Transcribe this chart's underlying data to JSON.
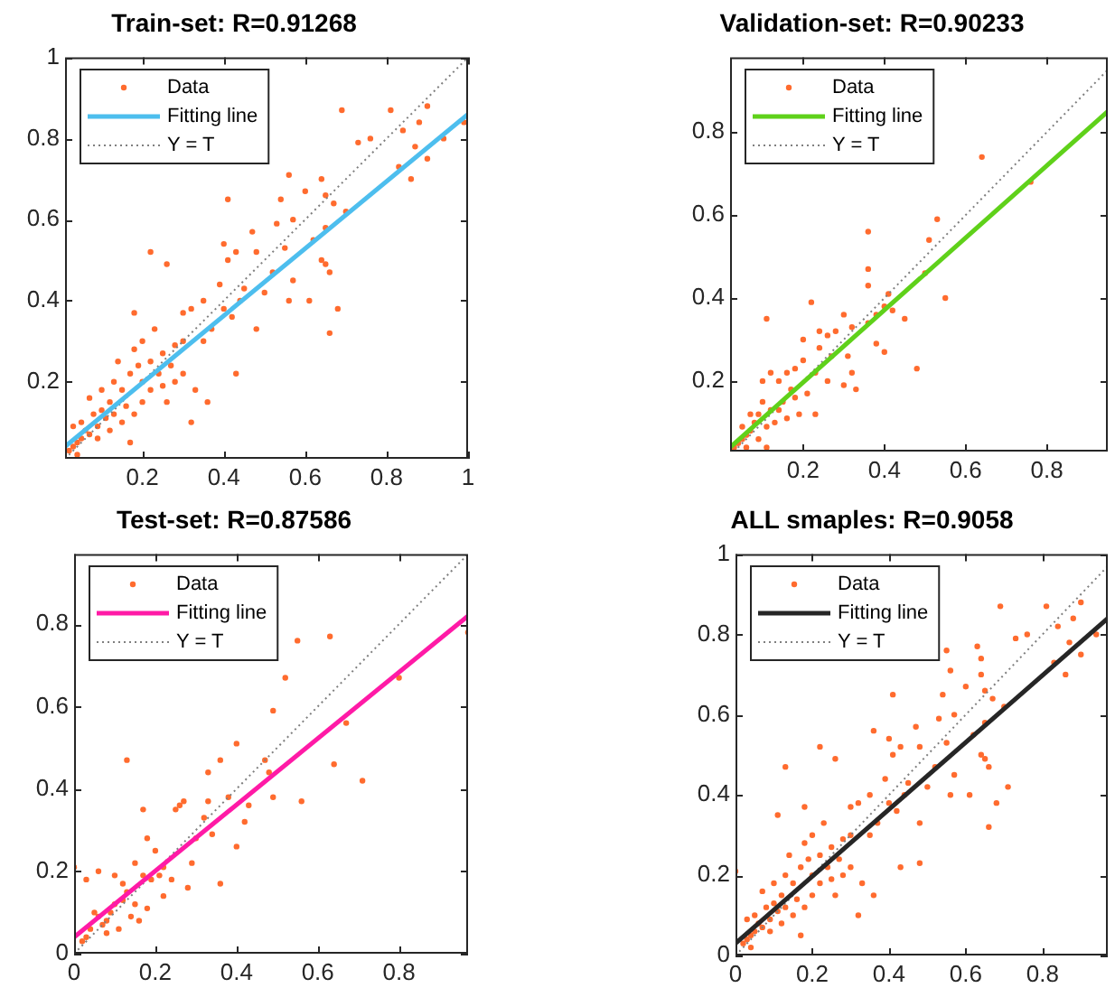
{
  "chart_data": [
    {
      "type": "scatter",
      "title": "Train-set: R=0.91268",
      "xlim": [
        0.01,
        1
      ],
      "ylim": [
        0.01,
        1
      ],
      "xticks": [
        0.2,
        0.4,
        0.6,
        0.8,
        1
      ],
      "yticks": [
        0.2,
        0.4,
        0.6,
        0.8,
        1
      ],
      "grid": false,
      "legend": "top left",
      "series": [
        {
          "name": "Data",
          "type": "scatter",
          "marker": "circle",
          "color": "#ff6b2e",
          "x": [
            0.69,
            0.81,
            0.9,
            0.88,
            0.84,
            0.99,
            0.94,
            0.87,
            0.76,
            0.73,
            0.83,
            0.9,
            0.86,
            0.56,
            0.64,
            0.6,
            0.41,
            0.54,
            0.65,
            0.67,
            0.53,
            0.57,
            0.65,
            0.7,
            0.47,
            0.4,
            0.43,
            0.22,
            0.26,
            0.41,
            0.48,
            0.55,
            0.64,
            0.65,
            0.66,
            0.62,
            0.57,
            0.52,
            0.56,
            0.61,
            0.68,
            0.66,
            0.5,
            0.44,
            0.45,
            0.39,
            0.48,
            0.43,
            0.35,
            0.32,
            0.3,
            0.4,
            0.42,
            0.37,
            0.35,
            0.3,
            0.28,
            0.25,
            0.22,
            0.18,
            0.23,
            0.2,
            0.18,
            0.24,
            0.28,
            0.33,
            0.36,
            0.32,
            0.26,
            0.2,
            0.17,
            0.15,
            0.13,
            0.12,
            0.1,
            0.08,
            0.06,
            0.05,
            0.04,
            0.03,
            0.02,
            0.05,
            0.07,
            0.03,
            0.09,
            0.12,
            0.15,
            0.18,
            0.2,
            0.22,
            0.14,
            0.16,
            0.11,
            0.13,
            0.09,
            0.07,
            0.19,
            0.25,
            0.27,
            0.3,
            0.1,
            0.04,
            0.17
          ],
          "values": [
            0.87,
            0.87,
            0.88,
            0.84,
            0.82,
            0.84,
            0.8,
            0.78,
            0.8,
            0.79,
            0.73,
            0.75,
            0.7,
            0.71,
            0.7,
            0.67,
            0.65,
            0.65,
            0.66,
            0.64,
            0.59,
            0.6,
            0.58,
            0.62,
            0.57,
            0.54,
            0.52,
            0.52,
            0.49,
            0.5,
            0.52,
            0.53,
            0.5,
            0.49,
            0.47,
            0.55,
            0.45,
            0.47,
            0.4,
            0.4,
            0.38,
            0.32,
            0.42,
            0.4,
            0.43,
            0.44,
            0.33,
            0.22,
            0.4,
            0.38,
            0.37,
            0.38,
            0.36,
            0.33,
            0.3,
            0.3,
            0.29,
            0.27,
            0.25,
            0.37,
            0.33,
            0.3,
            0.28,
            0.22,
            0.2,
            0.18,
            0.15,
            0.1,
            0.15,
            0.2,
            0.22,
            0.18,
            0.2,
            0.15,
            0.13,
            0.12,
            0.08,
            0.06,
            0.05,
            0.04,
            0.03,
            0.1,
            0.16,
            0.09,
            0.06,
            0.08,
            0.1,
            0.12,
            0.15,
            0.18,
            0.25,
            0.14,
            0.11,
            0.12,
            0.09,
            0.07,
            0.24,
            0.19,
            0.24,
            0.22,
            0.18,
            0.02,
            0.05
          ]
        },
        {
          "name": "Fitting line",
          "type": "line",
          "color": "#4dbeee",
          "line_style": "solid",
          "x": [
            0.01,
            1
          ],
          "values": [
            0.04,
            0.86
          ]
        },
        {
          "name": "Y = T",
          "type": "line",
          "color": "#7f7f7f",
          "line_style": "dotted",
          "x": [
            0.01,
            1
          ],
          "values": [
            0.01,
            1
          ]
        }
      ]
    },
    {
      "type": "scatter",
      "title": "Validation-set: R=0.90233",
      "xlim": [
        0.02,
        0.95
      ],
      "ylim": [
        0.03,
        0.98
      ],
      "xticks": [
        0.2,
        0.4,
        0.6,
        0.8
      ],
      "yticks": [
        0.2,
        0.4,
        0.6,
        0.8
      ],
      "grid": false,
      "legend": "top left",
      "series": [
        {
          "name": "Data",
          "type": "scatter",
          "marker": "circle",
          "color": "#ff6b2e",
          "x": [
            0.64,
            0.76,
            0.53,
            0.51,
            0.36,
            0.36,
            0.36,
            0.5,
            0.55,
            0.41,
            0.4,
            0.42,
            0.45,
            0.38,
            0.36,
            0.48,
            0.4,
            0.38,
            0.3,
            0.22,
            0.11,
            0.32,
            0.28,
            0.26,
            0.24,
            0.2,
            0.24,
            0.32,
            0.33,
            0.3,
            0.26,
            0.23,
            0.2,
            0.18,
            0.16,
            0.14,
            0.12,
            0.1,
            0.1,
            0.12,
            0.15,
            0.18,
            0.21,
            0.23,
            0.19,
            0.16,
            0.13,
            0.11,
            0.09,
            0.08,
            0.07,
            0.06,
            0.05,
            0.04,
            0.03,
            0.05,
            0.07,
            0.09,
            0.06,
            0.11,
            0.14,
            0.17,
            0.27,
            0.31
          ],
          "values": [
            0.74,
            0.68,
            0.59,
            0.54,
            0.56,
            0.47,
            0.43,
            0.46,
            0.4,
            0.41,
            0.38,
            0.37,
            0.35,
            0.36,
            0.34,
            0.23,
            0.27,
            0.29,
            0.36,
            0.39,
            0.35,
            0.33,
            0.32,
            0.31,
            0.32,
            0.3,
            0.28,
            0.22,
            0.18,
            0.19,
            0.2,
            0.22,
            0.25,
            0.23,
            0.22,
            0.2,
            0.22,
            0.2,
            0.15,
            0.13,
            0.15,
            0.16,
            0.17,
            0.12,
            0.12,
            0.11,
            0.1,
            0.09,
            0.12,
            0.1,
            0.08,
            0.07,
            0.06,
            0.05,
            0.04,
            0.09,
            0.12,
            0.06,
            0.04,
            0.04,
            0.13,
            0.18,
            0.26,
            0.26
          ]
        },
        {
          "name": "Fitting line",
          "type": "line",
          "color": "#5fd11a",
          "line_style": "solid",
          "x": [
            0.02,
            0.95
          ],
          "values": [
            0.04,
            0.85
          ]
        },
        {
          "name": "Y = T",
          "type": "line",
          "color": "#7f7f7f",
          "line_style": "dotted",
          "x": [
            0.03,
            0.95
          ],
          "values": [
            0.03,
            0.95
          ]
        }
      ]
    },
    {
      "type": "scatter",
      "title": "Test-set: R=0.87586",
      "xlim": [
        0,
        0.97
      ],
      "ylim": [
        0,
        0.97
      ],
      "xticks": [
        0,
        0.2,
        0.4,
        0.6,
        0.8
      ],
      "yticks": [
        0,
        0.2,
        0.4,
        0.6,
        0.8
      ],
      "grid": false,
      "legend": "top left",
      "series": [
        {
          "name": "Data",
          "type": "scatter",
          "marker": "circle",
          "color": "#ff6b2e",
          "x": [
            0.97,
            0.8,
            0.55,
            0.63,
            0.52,
            0.49,
            0.67,
            0.71,
            0.64,
            0.56,
            0.49,
            0.47,
            0.48,
            0.4,
            0.36,
            0.33,
            0.13,
            0.38,
            0.42,
            0.43,
            0.4,
            0.36,
            0.27,
            0.26,
            0.25,
            0.33,
            0.32,
            0.34,
            0.3,
            0.29,
            0.28,
            0.24,
            0.22,
            0.2,
            0.18,
            0.17,
            0.15,
            0.17,
            0.19,
            0.18,
            0.15,
            0.13,
            0.12,
            0.1,
            0.09,
            0.08,
            0.07,
            0.06,
            0.05,
            0.04,
            0.03,
            0.02,
            0.0,
            0.03,
            0.06,
            0.1,
            0.11,
            0.08,
            0.14,
            0.16,
            0.22,
            0.21,
            0.12
          ],
          "values": [
            0.78,
            0.67,
            0.76,
            0.77,
            0.67,
            0.59,
            0.56,
            0.42,
            0.46,
            0.37,
            0.38,
            0.47,
            0.44,
            0.51,
            0.47,
            0.44,
            0.47,
            0.38,
            0.32,
            0.36,
            0.26,
            0.17,
            0.37,
            0.36,
            0.35,
            0.37,
            0.33,
            0.29,
            0.28,
            0.22,
            0.16,
            0.18,
            0.21,
            0.25,
            0.28,
            0.35,
            0.22,
            0.19,
            0.18,
            0.11,
            0.12,
            0.15,
            0.13,
            0.12,
            0.1,
            0.08,
            0.07,
            0.09,
            0.1,
            0.06,
            0.04,
            0.03,
            0.21,
            0.18,
            0.2,
            0.19,
            0.06,
            0.05,
            0.09,
            0.08,
            0.14,
            0.19,
            0.17
          ]
        },
        {
          "name": "Fitting line",
          "type": "line",
          "color": "#ff1aa6",
          "line_style": "solid",
          "x": [
            0,
            0.97
          ],
          "values": [
            0.04,
            0.82
          ]
        },
        {
          "name": "Y = T",
          "type": "line",
          "color": "#7f7f7f",
          "line_style": "dotted",
          "x": [
            0,
            0.97
          ],
          "values": [
            0,
            0.97
          ]
        }
      ]
    },
    {
      "type": "scatter",
      "title": "ALL smaples: R=0.9058",
      "xlim": [
        0,
        0.97
      ],
      "ylim": [
        0,
        1
      ],
      "xticks": [
        0,
        0.2,
        0.4,
        0.6,
        0.8
      ],
      "yticks": [
        0,
        0.2,
        0.4,
        0.6,
        0.8,
        1
      ],
      "grid": false,
      "legend": "top left",
      "series": [
        {
          "name": "Data",
          "type": "scatter",
          "marker": "circle",
          "color": "#ff6b2e",
          "x": [
            0.69,
            0.81,
            0.9,
            0.88,
            0.84,
            0.94,
            0.87,
            0.76,
            0.73,
            0.83,
            0.9,
            0.86,
            0.56,
            0.64,
            0.6,
            0.41,
            0.54,
            0.65,
            0.67,
            0.53,
            0.57,
            0.65,
            0.7,
            0.47,
            0.4,
            0.43,
            0.22,
            0.26,
            0.41,
            0.48,
            0.55,
            0.64,
            0.65,
            0.66,
            0.62,
            0.57,
            0.52,
            0.56,
            0.61,
            0.68,
            0.66,
            0.5,
            0.44,
            0.45,
            0.39,
            0.48,
            0.43,
            0.35,
            0.32,
            0.3,
            0.4,
            0.42,
            0.37,
            0.35,
            0.3,
            0.28,
            0.25,
            0.22,
            0.18,
            0.23,
            0.2,
            0.18,
            0.24,
            0.28,
            0.33,
            0.36,
            0.32,
            0.26,
            0.2,
            0.17,
            0.15,
            0.13,
            0.12,
            0.1,
            0.08,
            0.06,
            0.05,
            0.04,
            0.03,
            0.02,
            0.05,
            0.07,
            0.03,
            0.09,
            0.12,
            0.15,
            0.18,
            0.2,
            0.22,
            0.14,
            0.16,
            0.11,
            0.13,
            0.09,
            0.07,
            0.19,
            0.25,
            0.27,
            0.3,
            0.1,
            0.04,
            0.17,
            0.13,
            0.55,
            0.63,
            0.71,
            0.64,
            0.0,
            0.48,
            0.11,
            0.36
          ],
          "values": [
            0.87,
            0.87,
            0.88,
            0.84,
            0.82,
            0.8,
            0.78,
            0.8,
            0.79,
            0.73,
            0.75,
            0.7,
            0.71,
            0.7,
            0.67,
            0.65,
            0.65,
            0.66,
            0.64,
            0.59,
            0.6,
            0.58,
            0.62,
            0.57,
            0.54,
            0.52,
            0.52,
            0.49,
            0.5,
            0.52,
            0.53,
            0.5,
            0.49,
            0.47,
            0.55,
            0.45,
            0.47,
            0.4,
            0.4,
            0.38,
            0.32,
            0.42,
            0.4,
            0.43,
            0.44,
            0.33,
            0.22,
            0.4,
            0.38,
            0.37,
            0.38,
            0.36,
            0.33,
            0.3,
            0.3,
            0.29,
            0.27,
            0.25,
            0.37,
            0.33,
            0.3,
            0.28,
            0.22,
            0.2,
            0.18,
            0.15,
            0.1,
            0.15,
            0.2,
            0.22,
            0.18,
            0.2,
            0.15,
            0.13,
            0.12,
            0.08,
            0.06,
            0.05,
            0.04,
            0.03,
            0.1,
            0.16,
            0.09,
            0.06,
            0.08,
            0.1,
            0.12,
            0.15,
            0.18,
            0.25,
            0.14,
            0.11,
            0.12,
            0.09,
            0.07,
            0.24,
            0.19,
            0.24,
            0.22,
            0.18,
            0.02,
            0.05,
            0.47,
            0.76,
            0.77,
            0.42,
            0.74,
            0.21,
            0.23,
            0.35,
            0.56
          ]
        },
        {
          "name": "Fitting line",
          "type": "line",
          "color": "#262626",
          "line_style": "solid",
          "x": [
            0,
            0.97
          ],
          "values": [
            0.03,
            0.84
          ]
        },
        {
          "name": "Y = T",
          "type": "line",
          "color": "#7f7f7f",
          "line_style": "dotted",
          "x": [
            0,
            0.97
          ],
          "values": [
            0,
            0.97
          ]
        }
      ]
    }
  ]
}
